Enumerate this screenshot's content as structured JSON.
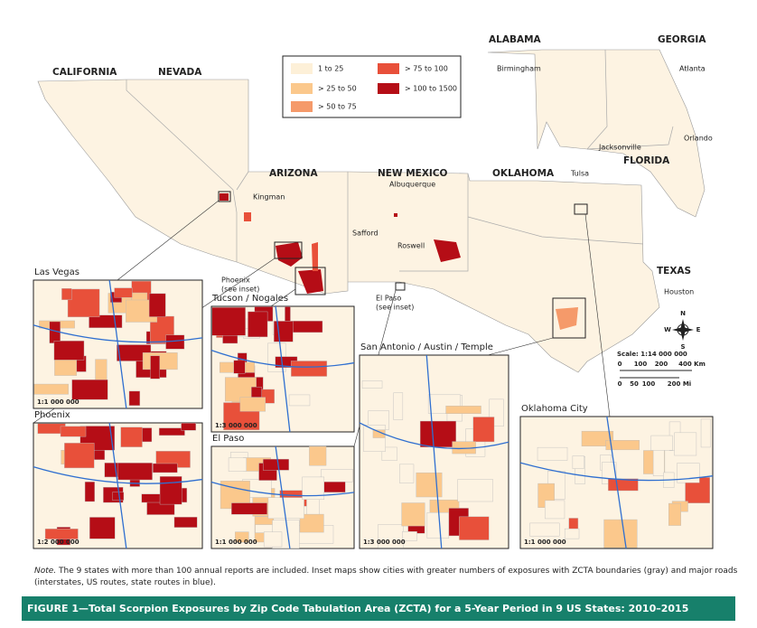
{
  "states": [
    "CALIFORNIA",
    "NEVADA",
    "ARIZONA",
    "NEW MEXICO",
    "OKLAHOMA",
    "ALABAMA",
    "GEORGIA",
    "FLORIDA",
    "TEXAS"
  ],
  "cities": [
    "Birmingham",
    "Atlanta",
    "Orlando",
    "Jacksonville",
    "Tulsa",
    "Kingman",
    "Albuquerque",
    "Safford",
    "Roswell",
    "Houston"
  ],
  "see_inset": {
    "phoenix": [
      "Phoenix",
      "(see inset)"
    ],
    "el_paso": [
      "El Paso",
      "(see inset)"
    ]
  },
  "legend": [
    {
      "label": "1 to 25",
      "color": "#fdf0d8"
    },
    {
      "label": "> 25 to 50",
      "color": "#fbc88c"
    },
    {
      "label": "> 50 to 75",
      "color": "#f59a6a"
    },
    {
      "label": "> 75 to 100",
      "color": "#e8503a"
    },
    {
      "label": "> 100 to 1500",
      "color": "#b50d16"
    }
  ],
  "compass": [
    "N",
    "S",
    "E",
    "W"
  ],
  "scale": {
    "title": "Scale: 1:14 000 000",
    "km": [
      "0",
      "100",
      "200",
      "400 Km"
    ],
    "mi": [
      "0",
      "50",
      "100",
      "200 Mi"
    ]
  },
  "insets": [
    {
      "title": "Las Vegas",
      "scale": "1:1 000 000"
    },
    {
      "title": "Phoenix",
      "scale": "1:2 000 000"
    },
    {
      "title": "Tucson / Nogales",
      "scale": "1:3 000 000"
    },
    {
      "title": "El Paso",
      "scale": "1:1 000 000"
    },
    {
      "title": "San Antonio / Austin / Temple",
      "scale": "1:3 000 000"
    },
    {
      "title": "Oklahoma City",
      "scale": "1:1 000 000"
    }
  ],
  "note": {
    "label": "Note.",
    "text": "The 9 states with more than 100 annual reports are included. Inset maps show cities with greater numbers of exposures with ZCTA boundaries (gray) and major roads (interstates, US routes, state routes in blue)."
  },
  "caption": "FIGURE 1—Total Scorpion Exposures by Zip Code Tabulation Area (ZCTA) for a 5-Year Period in 9 US States: 2010–2015"
}
